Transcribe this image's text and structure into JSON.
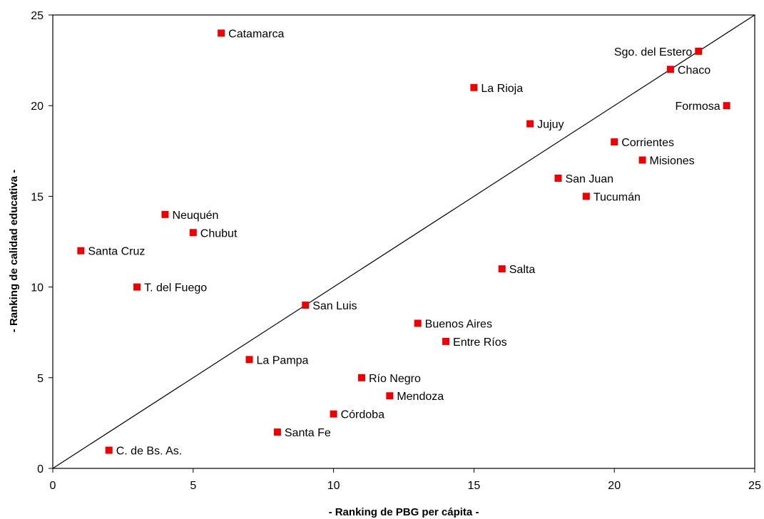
{
  "chart_data": {
    "type": "scatter",
    "title": "",
    "xlabel": "- Ranking de PBG per cápita -",
    "ylabel": "- Ranking de calidad educativa -",
    "xlim": [
      0,
      25
    ],
    "ylim": [
      0,
      25
    ],
    "xticks": [
      0,
      5,
      10,
      15,
      20,
      25
    ],
    "yticks": [
      0,
      5,
      10,
      15,
      20,
      25
    ],
    "grid": false,
    "legend": "none",
    "marker_color": "#ee0000",
    "reference_line": {
      "from": [
        0,
        0
      ],
      "to": [
        25,
        25
      ]
    },
    "points": [
      {
        "label": "Catamarca",
        "x": 6,
        "y": 24,
        "label_side": "right"
      },
      {
        "label": "Sgo. del Estero",
        "x": 23,
        "y": 23,
        "label_side": "left"
      },
      {
        "label": "Chaco",
        "x": 22,
        "y": 22,
        "label_side": "right"
      },
      {
        "label": "La Rioja",
        "x": 15,
        "y": 21,
        "label_side": "right"
      },
      {
        "label": "Formosa",
        "x": 24,
        "y": 20,
        "label_side": "left"
      },
      {
        "label": "Jujuy",
        "x": 17,
        "y": 19,
        "label_side": "right"
      },
      {
        "label": "Corrientes",
        "x": 20,
        "y": 18,
        "label_side": "right"
      },
      {
        "label": "Misiones",
        "x": 21,
        "y": 17,
        "label_side": "right"
      },
      {
        "label": "San Juan",
        "x": 18,
        "y": 16,
        "label_side": "right"
      },
      {
        "label": "Tucumán",
        "x": 19,
        "y": 15,
        "label_side": "right"
      },
      {
        "label": "Neuquén",
        "x": 4,
        "y": 14,
        "label_side": "right"
      },
      {
        "label": "Chubut",
        "x": 5,
        "y": 13,
        "label_side": "right"
      },
      {
        "label": "Santa Cruz",
        "x": 1,
        "y": 12,
        "label_side": "right"
      },
      {
        "label": "Salta",
        "x": 16,
        "y": 11,
        "label_side": "right"
      },
      {
        "label": "T. del Fuego",
        "x": 3,
        "y": 10,
        "label_side": "right"
      },
      {
        "label": "San Luis",
        "x": 9,
        "y": 9,
        "label_side": "right"
      },
      {
        "label": "Buenos Aires",
        "x": 13,
        "y": 8,
        "label_side": "right"
      },
      {
        "label": "Entre Ríos",
        "x": 14,
        "y": 7,
        "label_side": "right"
      },
      {
        "label": "La Pampa",
        "x": 7,
        "y": 6,
        "label_side": "right"
      },
      {
        "label": "Río Negro",
        "x": 11,
        "y": 5,
        "label_side": "right"
      },
      {
        "label": "Mendoza",
        "x": 12,
        "y": 4,
        "label_side": "right"
      },
      {
        "label": "Córdoba",
        "x": 10,
        "y": 3,
        "label_side": "right"
      },
      {
        "label": "Santa Fe",
        "x": 8,
        "y": 2,
        "label_side": "right"
      },
      {
        "label": "C. de Bs. As.",
        "x": 2,
        "y": 1,
        "label_side": "right"
      }
    ]
  }
}
